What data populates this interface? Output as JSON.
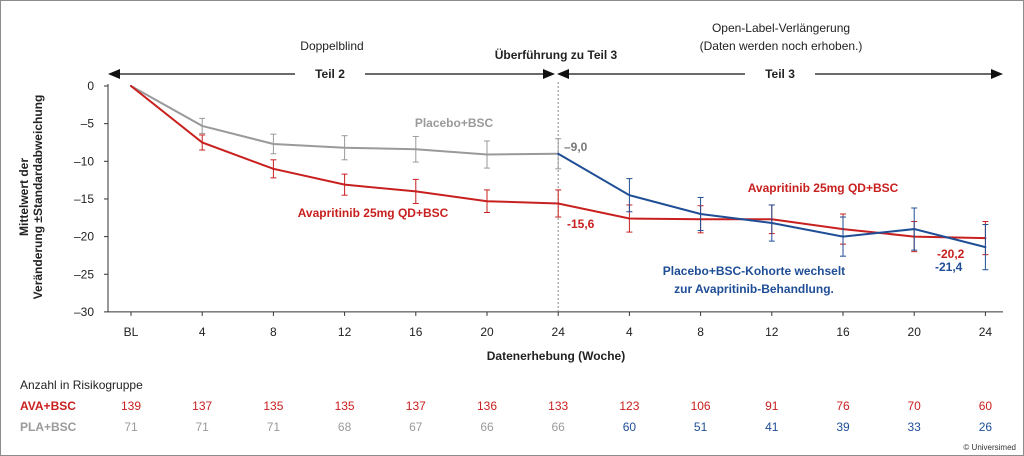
{
  "chart_data": {
    "type": "line",
    "categories": [
      "BL",
      "4",
      "8",
      "12",
      "16",
      "20",
      "24",
      "4",
      "8",
      "12",
      "16",
      "20",
      "24"
    ],
    "xlabel": "Datenerhebung (Woche)",
    "ylabel_line1": "Mittelwert der",
    "ylabel_line2": "Veränderung ±Standardabweichung",
    "ylim": [
      -30,
      0
    ],
    "yticks": [
      0,
      -5,
      -10,
      -15,
      -20,
      -25,
      -30
    ],
    "ytick_labels": [
      "0",
      "–5",
      "–10",
      "–15",
      "–20",
      "–25",
      "–30"
    ],
    "grid": false,
    "series": [
      {
        "name": "Avapritinib 25mg QD+BSC",
        "color": "#c8201f",
        "points": [
          {
            "i": 0,
            "y": 0
          },
          {
            "i": 1,
            "y": -7.5,
            "err": 1.0
          },
          {
            "i": 2,
            "y": -11.0,
            "err": 1.2
          },
          {
            "i": 3,
            "y": -13.1,
            "err": 1.4
          },
          {
            "i": 4,
            "y": -14.0,
            "err": 1.6
          },
          {
            "i": 5,
            "y": -15.3,
            "err": 1.5
          },
          {
            "i": 6,
            "y": -15.6,
            "err": 1.8
          },
          {
            "i": 7,
            "y": -17.6,
            "err": 1.8
          },
          {
            "i": 8,
            "y": -17.7,
            "err": 1.8
          },
          {
            "i": 9,
            "y": -17.7,
            "err": 1.9
          },
          {
            "i": 10,
            "y": -19.0,
            "err": 2.0
          },
          {
            "i": 11,
            "y": -20.0,
            "err": 2.0
          },
          {
            "i": 12,
            "y": -20.2,
            "err": 2.2
          }
        ]
      },
      {
        "name": "Placebo+BSC",
        "color": "#9a9a9a",
        "points": [
          {
            "i": 0,
            "y": 0
          },
          {
            "i": 1,
            "y": -5.3,
            "err": 1.0
          },
          {
            "i": 2,
            "y": -7.7,
            "err": 1.3
          },
          {
            "i": 3,
            "y": -8.2,
            "err": 1.6
          },
          {
            "i": 4,
            "y": -8.4,
            "err": 1.7
          },
          {
            "i": 5,
            "y": -9.1,
            "err": 1.8
          },
          {
            "i": 6,
            "y": -9.0,
            "err": 2.0
          }
        ]
      },
      {
        "name": "Placebo+BSC-Kohorte wechselt zur Avapritinib-Behandlung.",
        "color": "#1f4e96",
        "points": [
          {
            "i": 6,
            "y": -9.0
          },
          {
            "i": 7,
            "y": -14.5,
            "err": 2.2
          },
          {
            "i": 8,
            "y": -17.0,
            "err": 2.2
          },
          {
            "i": 9,
            "y": -18.2,
            "err": 2.4
          },
          {
            "i": 10,
            "y": -20.0,
            "err": 2.6
          },
          {
            "i": 11,
            "y": -19.0,
            "err": 2.8
          },
          {
            "i": 12,
            "y": -21.4,
            "err": 3.0
          }
        ]
      }
    ],
    "annotations": {
      "label_red_left": "Avapritinib 25mg QD+BSC",
      "label_red_right": "Avapritinib 25mg QD+BSC",
      "label_gray": "Placebo+BSC",
      "label_blue_line1": "Placebo+BSC-Kohorte wechselt",
      "label_blue_line2": "zur Avapritinib-Behandlung.",
      "val_gray_24": "–9,0",
      "val_red_24": "-15,6",
      "val_red_end": "-20,2",
      "val_blue_end": "-21,4"
    },
    "header": {
      "doppelblind": "Doppelblind",
      "transition": "Überführung zu Teil 3",
      "open_label_line1": "Open-Label-Verlängerung",
      "open_label_line2": "(Daten werden noch erhoben.)",
      "part2": "Teil 2",
      "part3": "Teil 3"
    }
  },
  "risk_table": {
    "title": "Anzahl in Risikogruppe",
    "rows": [
      {
        "label": "AVA+BSC",
        "label_color": "#c8201f",
        "values": [
          "139",
          "137",
          "135",
          "135",
          "137",
          "136",
          "133",
          "123",
          "106",
          "91",
          "76",
          "70",
          "60"
        ],
        "colors": [
          "#c8201f",
          "#c8201f",
          "#c8201f",
          "#c8201f",
          "#c8201f",
          "#c8201f",
          "#c8201f",
          "#c8201f",
          "#c8201f",
          "#c8201f",
          "#c8201f",
          "#c8201f",
          "#c8201f"
        ]
      },
      {
        "label": "PLA+BSC",
        "label_color": "#9a9a9a",
        "values": [
          "71",
          "71",
          "71",
          "68",
          "67",
          "66",
          "66",
          "60",
          "51",
          "41",
          "39",
          "33",
          "26"
        ],
        "colors": [
          "#9a9a9a",
          "#9a9a9a",
          "#9a9a9a",
          "#9a9a9a",
          "#9a9a9a",
          "#9a9a9a",
          "#9a9a9a",
          "#1f4e96",
          "#1f4e96",
          "#1f4e96",
          "#1f4e96",
          "#1f4e96",
          "#1f4e96"
        ]
      }
    ]
  },
  "copyright": "© Universimed"
}
